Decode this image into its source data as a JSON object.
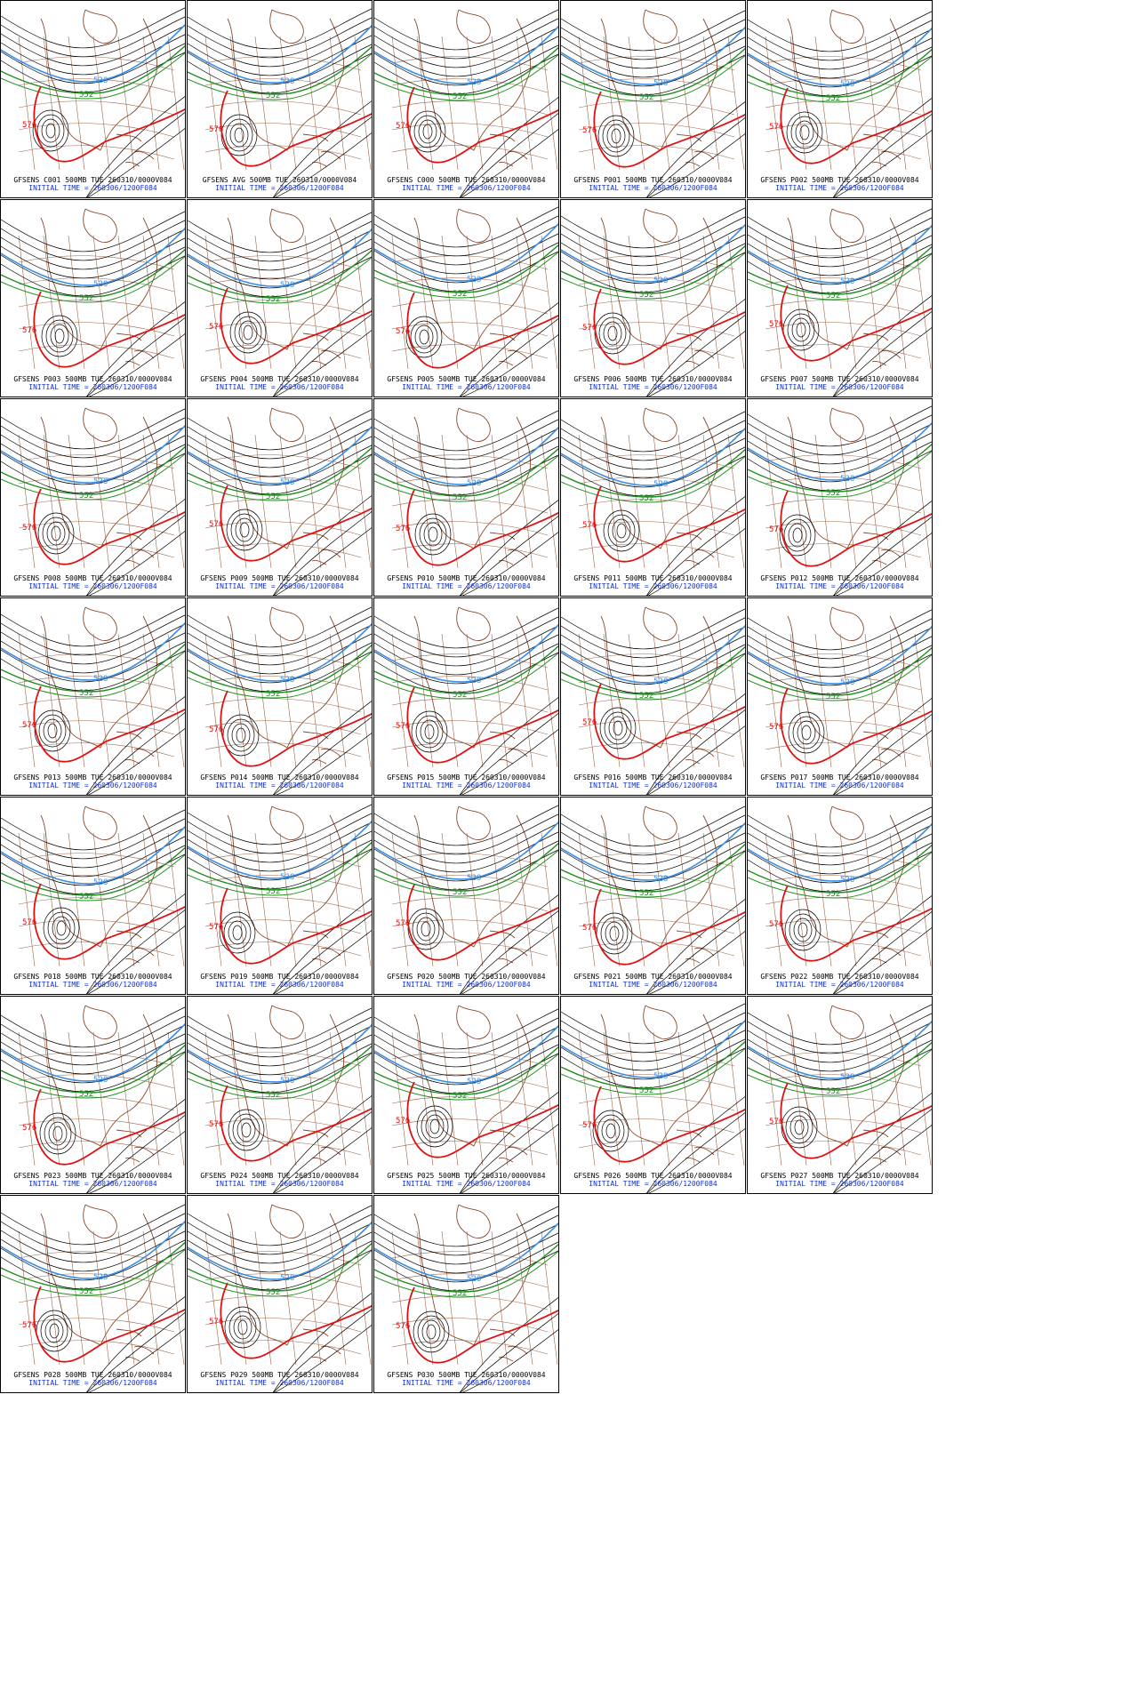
{
  "panels": [
    {
      "title": "GFSENS C001 500MB TUE 260310/0000V084",
      "init": "INITIAL TIME = 260306/1200F084"
    },
    {
      "title": "GFSENS AVG 500MB TUE 260310/0000V084",
      "init": "INITIAL TIME = 260306/1200F084"
    },
    {
      "title": "GFSENS C000 500MB TUE 260310/0000V084",
      "init": "INITIAL TIME = 260306/1200F084"
    },
    {
      "title": "GFSENS P001 500MB TUE 260310/0000V084",
      "init": "INITIAL TIME = 260306/1200F084"
    },
    {
      "title": "GFSENS P002 500MB TUE 260310/0000V084",
      "init": "INITIAL TIME = 260306/1200F084"
    },
    {
      "title": "GFSENS P003 500MB TUE 260310/0000V084",
      "init": "INITIAL TIME = 260306/1200F084"
    },
    {
      "title": "GFSENS P004 500MB TUE 260310/0000V084",
      "init": "INITIAL TIME = 260306/1200F084"
    },
    {
      "title": "GFSENS P005 500MB TUE 260310/0000V084",
      "init": "INITIAL TIME = 260306/1200F084"
    },
    {
      "title": "GFSENS P006 500MB TUE 260310/0000V084",
      "init": "INITIAL TIME = 260306/1200F084"
    },
    {
      "title": "GFSENS P007 500MB TUE 260310/0000V084",
      "init": "INITIAL TIME = 260306/1200F084"
    },
    {
      "title": "GFSENS P008 500MB TUE 260310/0000V084",
      "init": "INITIAL TIME = 260306/1200F084"
    },
    {
      "title": "GFSENS P009 500MB TUE 260310/0000V084",
      "init": "INITIAL TIME = 260306/1200F084"
    },
    {
      "title": "GFSENS P010 500MB TUE 260310/0000V084",
      "init": "INITIAL TIME = 260306/1200F084"
    },
    {
      "title": "GFSENS P011 500MB TUE 260310/0000V084",
      "init": "INITIAL TIME = 260306/1200F084"
    },
    {
      "title": "GFSENS P012 500MB TUE 260310/0000V084",
      "init": "INITIAL TIME = 260306/1200F084"
    },
    {
      "title": "GFSENS P013 500MB TUE 260310/0000V084",
      "init": "INITIAL TIME = 260306/1200F084"
    },
    {
      "title": "GFSENS P014 500MB TUE 260310/0000V084",
      "init": "INITIAL TIME = 260306/1200F084"
    },
    {
      "title": "GFSENS P015 500MB TUE 260310/0000V084",
      "init": "INITIAL TIME = 260306/1200F084"
    },
    {
      "title": "GFSENS P016 500MB TUE 260310/0000V084",
      "init": "INITIAL TIME = 260306/1200F084"
    },
    {
      "title": "GFSENS P017 500MB TUE 260310/0000V084",
      "init": "INITIAL TIME = 260306/1200F084"
    },
    {
      "title": "GFSENS P018 500MB TUE 260310/0000V084",
      "init": "INITIAL TIME = 260306/1200F084"
    },
    {
      "title": "GFSENS P019 500MB TUE 260310/0000V084",
      "init": "INITIAL TIME = 260306/1200F084"
    },
    {
      "title": "GFSENS P020 500MB TUE 260310/0000V084",
      "init": "INITIAL TIME = 260306/1200F084"
    },
    {
      "title": "GFSENS P021 500MB TUE 260310/0000V084",
      "init": "INITIAL TIME = 260306/1200F084"
    },
    {
      "title": "GFSENS P022 500MB TUE 260310/0000V084",
      "init": "INITIAL TIME = 260306/1200F084"
    },
    {
      "title": "GFSENS P023 500MB TUE 260310/0000V084",
      "init": "INITIAL TIME = 260306/1200F084"
    },
    {
      "title": "GFSENS P024 500MB TUE 260310/0000V084",
      "init": "INITIAL TIME = 260306/1200F084"
    },
    {
      "title": "GFSENS P025 500MB TUE 260310/0000V084",
      "init": "INITIAL TIME = 260306/1200F084"
    },
    {
      "title": "GFSENS P026 500MB TUE 260310/0000V084",
      "init": "INITIAL TIME = 260306/1200F084"
    },
    {
      "title": "GFSENS P027 500MB TUE 260310/0000V084",
      "init": "INITIAL TIME = 260306/1200F084"
    },
    {
      "title": "GFSENS P028 500MB TUE 260310/0000V084",
      "init": "INITIAL TIME = 260306/1200F084"
    },
    {
      "title": "GFSENS P029 500MB TUE 260310/0000V084",
      "init": "INITIAL TIME = 260306/1200F084"
    },
    {
      "title": "GFSENS P030 500MB TUE 260310/0000V084",
      "init": "INITIAL TIME = 260306/1200F084"
    }
  ],
  "contour_labels": {
    "blue": "528",
    "green": "552",
    "red": "576"
  },
  "colors": {
    "blue": "#3a8ee6",
    "green": "#1f8f1f",
    "red": "#e01010",
    "black": "#000000",
    "coast": "#8b4a2b",
    "caption_init": "#1030d0"
  }
}
